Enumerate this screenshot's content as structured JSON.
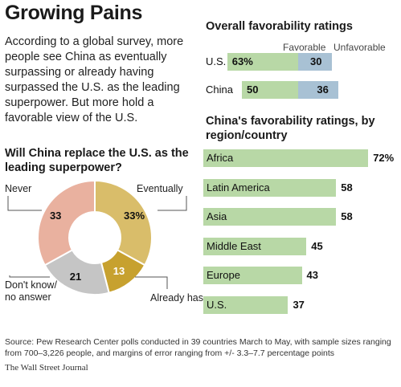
{
  "headline": "Growing Pains",
  "intro": "According to a global survey, more people see China as eventually surpassing or already having surpassed the U.S. as the leading superpower. But more hold a favorable view of the U.S.",
  "colors": {
    "green": "#b8d8a6",
    "blue": "#a8c1d4",
    "pie_never": "#e9b19f",
    "pie_eventually": "#d9bd6a",
    "pie_already": "#c7a12f",
    "pie_dont_know": "#c5c5c5"
  },
  "source": "Source: Pew Research Center polls conducted in 39 countries March to May, with sample sizes ranging from 700–3,226 people, and margins of error ranging from +/- 3.3–7.7 percentage points",
  "publisher": "The Wall Street Journal",
  "chart_data": [
    {
      "type": "bar",
      "title": "Overall favorability ratings",
      "categories": [
        "U.S.",
        "China"
      ],
      "series": [
        {
          "name": "Favorable",
          "values": [
            63,
            50
          ],
          "labels": [
            "63%",
            "50"
          ]
        },
        {
          "name": "Unfavorable",
          "values": [
            30,
            36
          ],
          "labels": [
            "30",
            "36"
          ]
        }
      ]
    },
    {
      "type": "bar",
      "title": "China's favorability ratings, by region/country",
      "categories": [
        "Africa",
        "Latin America",
        "Asia",
        "Middle East",
        "Europe",
        "U.S."
      ],
      "values": [
        72,
        58,
        58,
        45,
        43,
        37
      ],
      "labels": [
        "72%",
        "58",
        "58",
        "45",
        "43",
        "37"
      ]
    },
    {
      "type": "pie",
      "title": "Will China replace the U.S. as the leading superpower?",
      "categories": [
        "Eventually",
        "Already has",
        "Don't know/ no answer",
        "Never"
      ],
      "values": [
        33,
        13,
        21,
        33
      ],
      "labels": [
        "33%",
        "13",
        "21",
        "33"
      ],
      "legend_labels": [
        "Eventually",
        "Already has",
        "Don't know/\nno answer",
        "Never"
      ]
    }
  ]
}
